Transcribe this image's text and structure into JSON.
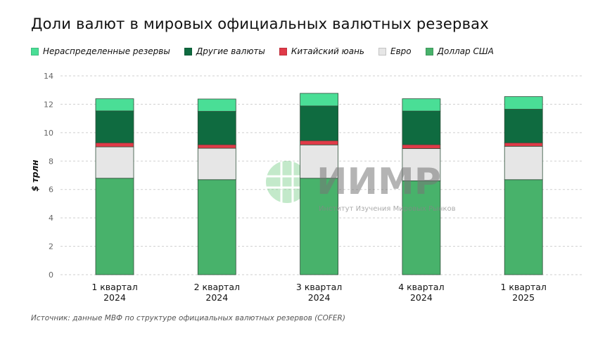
{
  "chart_data": {
    "type": "bar",
    "stacked": true,
    "title": "Доли валют в мировых официальных валютных резервах",
    "ylabel": "$ трлн",
    "xlabel": "",
    "ylim": [
      0,
      14
    ],
    "yticks": [
      "0",
      "2",
      "4",
      "6",
      "8",
      "10",
      "12",
      "14"
    ],
    "grid": true,
    "legend_position": "top-left",
    "categories": [
      [
        "1 квартал",
        "2024"
      ],
      [
        "2 квартал",
        "2024"
      ],
      [
        "3 квартал",
        "2024"
      ],
      [
        "4 квартал",
        "2024"
      ],
      [
        "1 квартал",
        "2025"
      ]
    ],
    "series": [
      {
        "name": "Доллар США",
        "color": "#48b26b",
        "values": [
          6.79,
          6.69,
          6.79,
          6.61,
          6.69
        ]
      },
      {
        "name": "Евро",
        "color": "#e6e6e6",
        "values": [
          2.21,
          2.21,
          2.35,
          2.27,
          2.35
        ]
      },
      {
        "name": "Китайский юань",
        "color": "#e03a48",
        "values": [
          0.29,
          0.26,
          0.3,
          0.28,
          0.25
        ]
      },
      {
        "name": "Другие валюты",
        "color": "#0f6b40",
        "values": [
          2.24,
          2.34,
          2.44,
          2.36,
          2.36
        ]
      },
      {
        "name": "Нераспределенные резервы",
        "color": "#4ade96",
        "values": [
          0.86,
          0.87,
          0.89,
          0.87,
          0.89
        ]
      }
    ],
    "legend_order": [
      "Нераспределенные резервы",
      "Другие валюты",
      "Китайский юань",
      "Евро",
      "Доллар США"
    ]
  },
  "source": "Источник: данные МВФ по структуре официальных валютных резервов (COFER)",
  "watermark": {
    "logo": "ИИМР",
    "subtitle": "Институт Изучения Мировых Рынков"
  }
}
